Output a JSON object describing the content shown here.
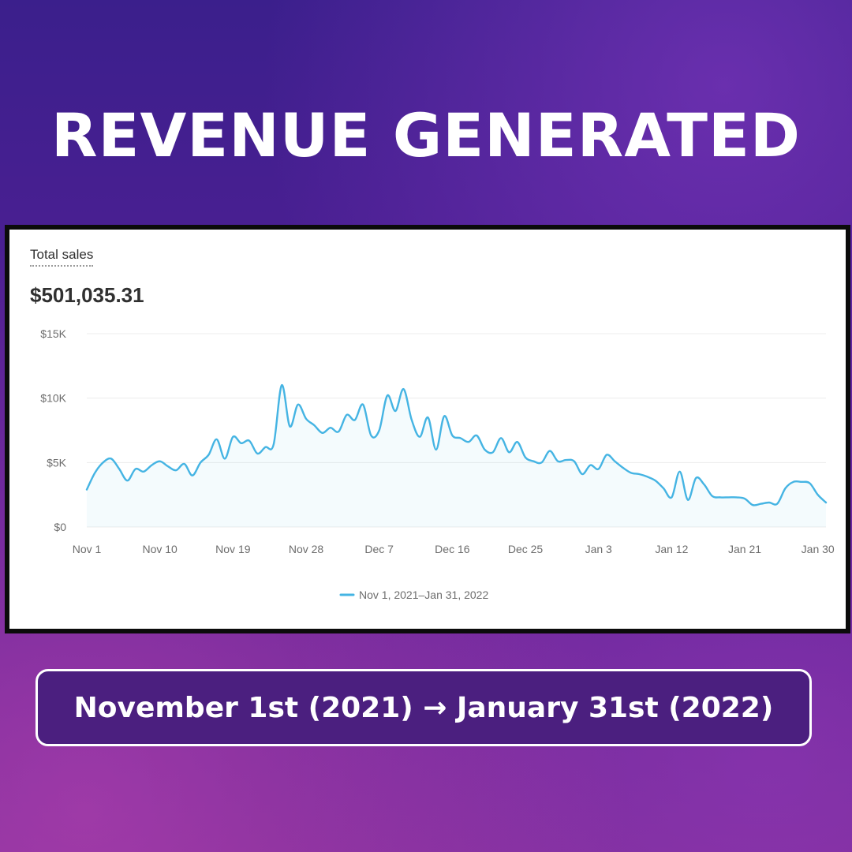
{
  "headline": "REVENUE GENERATED",
  "panel": {
    "label": "Total sales",
    "total": "$501,035.31"
  },
  "date_range": "November 1st (2021) → January 31st (2022)",
  "colors": {
    "line": "#45b4e3",
    "grid": "#ececec",
    "panel_bg": "#ffffff",
    "date_box_bg": "#4b1f7f"
  },
  "chart_data": {
    "type": "area",
    "title": "",
    "xlabel": "",
    "ylabel": "",
    "ylim": [
      0,
      15000
    ],
    "y_ticks": [
      0,
      5000,
      10000,
      15000
    ],
    "y_tick_labels": [
      "$0",
      "$5K",
      "$10K",
      "$15K"
    ],
    "x_tick_labels": [
      "Nov 1",
      "Nov 10",
      "Nov 19",
      "Nov 28",
      "Dec 7",
      "Dec 16",
      "Dec 25",
      "Jan 3",
      "Jan 12",
      "Jan 21",
      "Jan 30"
    ],
    "grid": true,
    "legend_position": "bottom-center",
    "series": [
      {
        "name": "Nov 1, 2021–Jan 31, 2022",
        "x": [
          "2021-11-01",
          "2021-11-02",
          "2021-11-03",
          "2021-11-04",
          "2021-11-05",
          "2021-11-06",
          "2021-11-07",
          "2021-11-08",
          "2021-11-09",
          "2021-11-10",
          "2021-11-11",
          "2021-11-12",
          "2021-11-13",
          "2021-11-14",
          "2021-11-15",
          "2021-11-16",
          "2021-11-17",
          "2021-11-18",
          "2021-11-19",
          "2021-11-20",
          "2021-11-21",
          "2021-11-22",
          "2021-11-23",
          "2021-11-24",
          "2021-11-25",
          "2021-11-26",
          "2021-11-27",
          "2021-11-28",
          "2021-11-29",
          "2021-11-30",
          "2021-12-01",
          "2021-12-02",
          "2021-12-03",
          "2021-12-04",
          "2021-12-05",
          "2021-12-06",
          "2021-12-07",
          "2021-12-08",
          "2021-12-09",
          "2021-12-10",
          "2021-12-11",
          "2021-12-12",
          "2021-12-13",
          "2021-12-14",
          "2021-12-15",
          "2021-12-16",
          "2021-12-17",
          "2021-12-18",
          "2021-12-19",
          "2021-12-20",
          "2021-12-21",
          "2021-12-22",
          "2021-12-23",
          "2021-12-24",
          "2021-12-25",
          "2021-12-26",
          "2021-12-27",
          "2021-12-28",
          "2021-12-29",
          "2021-12-30",
          "2021-12-31",
          "2022-01-01",
          "2022-01-02",
          "2022-01-03",
          "2022-01-04",
          "2022-01-05",
          "2022-01-06",
          "2022-01-07",
          "2022-01-08",
          "2022-01-09",
          "2022-01-10",
          "2022-01-11",
          "2022-01-12",
          "2022-01-13",
          "2022-01-14",
          "2022-01-15",
          "2022-01-16",
          "2022-01-17",
          "2022-01-18",
          "2022-01-19",
          "2022-01-20",
          "2022-01-21",
          "2022-01-22",
          "2022-01-23",
          "2022-01-24",
          "2022-01-25",
          "2022-01-26",
          "2022-01-27",
          "2022-01-28",
          "2022-01-29",
          "2022-01-30",
          "2022-01-31"
        ],
        "values": [
          2900,
          4200,
          5000,
          5300,
          4500,
          3600,
          4500,
          4300,
          4800,
          5100,
          4700,
          4400,
          4900,
          4000,
          5000,
          5600,
          6800,
          5300,
          7000,
          6500,
          6700,
          5700,
          6200,
          6400,
          11000,
          7800,
          9500,
          8400,
          7900,
          7300,
          7700,
          7400,
          8700,
          8300,
          9500,
          7100,
          7500,
          10200,
          9000,
          10700,
          8300,
          7000,
          8500,
          6000,
          8600,
          7100,
          6900,
          6600,
          7100,
          6000,
          5800,
          6900,
          5800,
          6600,
          5400,
          5100,
          5000,
          5900,
          5100,
          5200,
          5100,
          4100,
          4800,
          4500,
          5600,
          5100,
          4600,
          4200,
          4100,
          3900,
          3600,
          3000,
          2300,
          4300,
          2100,
          3800,
          3300,
          2400,
          2300,
          2300,
          2300,
          2200,
          1700,
          1800,
          1900,
          1800,
          3000,
          3500,
          3500,
          3400,
          2500,
          1900
        ]
      }
    ]
  }
}
